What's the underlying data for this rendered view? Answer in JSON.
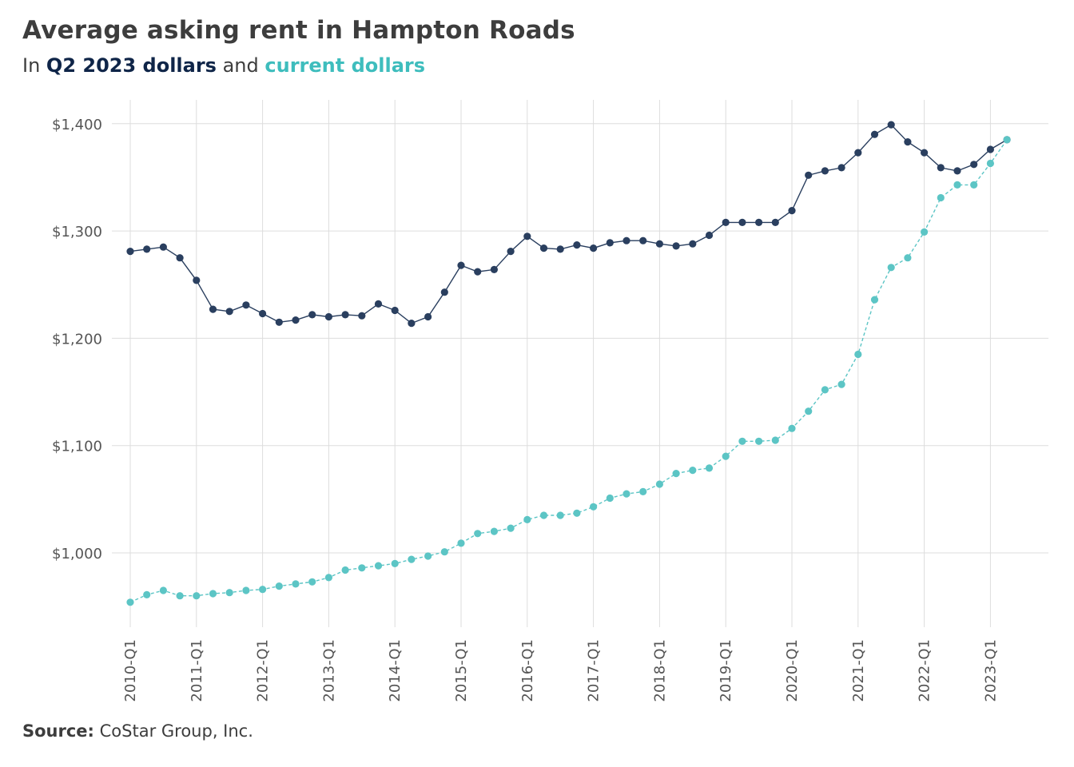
{
  "title": "Average asking rent in Hampton Roads",
  "subtitle": {
    "prefix": "In ",
    "series_real": "Q2 2023 dollars",
    "middle": " and ",
    "series_nominal": "current dollars"
  },
  "source": {
    "label": "Source:",
    "text": " CoStar Group, Inc."
  },
  "colors": {
    "real": "#2a3f5f",
    "nominal": "#5cc5c5",
    "grid": "#dddddd",
    "title_real": "#0f2548",
    "title_nominal": "#3ebdbd"
  },
  "chart_data": {
    "type": "line",
    "title": "Average asking rent in Hampton Roads",
    "xlabel": "",
    "ylabel": "",
    "ylim": [
      930,
      1425
    ],
    "yticks": [
      1000,
      1100,
      1200,
      1300,
      1400
    ],
    "ytick_labels": [
      "$1,000",
      "$1,100",
      "$1,200",
      "$1,300",
      "$1,400"
    ],
    "xtick_labels": [
      "2010-Q1",
      "2011-Q1",
      "2012-Q1",
      "2013-Q1",
      "2014-Q1",
      "2015-Q1",
      "2016-Q1",
      "2017-Q1",
      "2018-Q1",
      "2019-Q1",
      "2020-Q1",
      "2021-Q1",
      "2022-Q1",
      "2023-Q1"
    ],
    "grid": true,
    "x": [
      "2010-Q1",
      "2010-Q2",
      "2010-Q3",
      "2010-Q4",
      "2011-Q1",
      "2011-Q2",
      "2011-Q3",
      "2011-Q4",
      "2012-Q1",
      "2012-Q2",
      "2012-Q3",
      "2012-Q4",
      "2013-Q1",
      "2013-Q2",
      "2013-Q3",
      "2013-Q4",
      "2014-Q1",
      "2014-Q2",
      "2014-Q3",
      "2014-Q4",
      "2015-Q1",
      "2015-Q2",
      "2015-Q3",
      "2015-Q4",
      "2016-Q1",
      "2016-Q2",
      "2016-Q3",
      "2016-Q4",
      "2017-Q1",
      "2017-Q2",
      "2017-Q3",
      "2017-Q4",
      "2018-Q1",
      "2018-Q2",
      "2018-Q3",
      "2018-Q4",
      "2019-Q1",
      "2019-Q2",
      "2019-Q3",
      "2019-Q4",
      "2020-Q1",
      "2020-Q2",
      "2020-Q3",
      "2020-Q4",
      "2021-Q1",
      "2021-Q2",
      "2021-Q3",
      "2021-Q4",
      "2022-Q1",
      "2022-Q2",
      "2022-Q3",
      "2022-Q4",
      "2023-Q1",
      "2023-Q2"
    ],
    "series": [
      {
        "name": "Q2 2023 dollars",
        "style": "solid",
        "values": [
          1281,
          1283,
          1285,
          1275,
          1254,
          1227,
          1225,
          1231,
          1223,
          1215,
          1217,
          1222,
          1220,
          1222,
          1221,
          1232,
          1226,
          1214,
          1220,
          1243,
          1268,
          1262,
          1264,
          1281,
          1295,
          1284,
          1283,
          1287,
          1284,
          1289,
          1291,
          1291,
          1288,
          1286,
          1288,
          1296,
          1308,
          1308,
          1308,
          1308,
          1319,
          1352,
          1356,
          1359,
          1373,
          1390,
          1399,
          1383,
          1373,
          1359,
          1356,
          1362,
          1376,
          1385
        ]
      },
      {
        "name": "current dollars",
        "style": "dashed",
        "values": [
          954,
          961,
          965,
          960,
          960,
          962,
          963,
          965,
          966,
          969,
          971,
          973,
          977,
          984,
          986,
          988,
          990,
          994,
          997,
          1001,
          1009,
          1018,
          1020,
          1023,
          1031,
          1035,
          1035,
          1037,
          1043,
          1051,
          1055,
          1057,
          1064,
          1074,
          1077,
          1079,
          1090,
          1104,
          1104,
          1105,
          1116,
          1132,
          1152,
          1157,
          1185,
          1236,
          1266,
          1275,
          1299,
          1331,
          1343,
          1343,
          1363,
          1385
        ]
      }
    ]
  }
}
